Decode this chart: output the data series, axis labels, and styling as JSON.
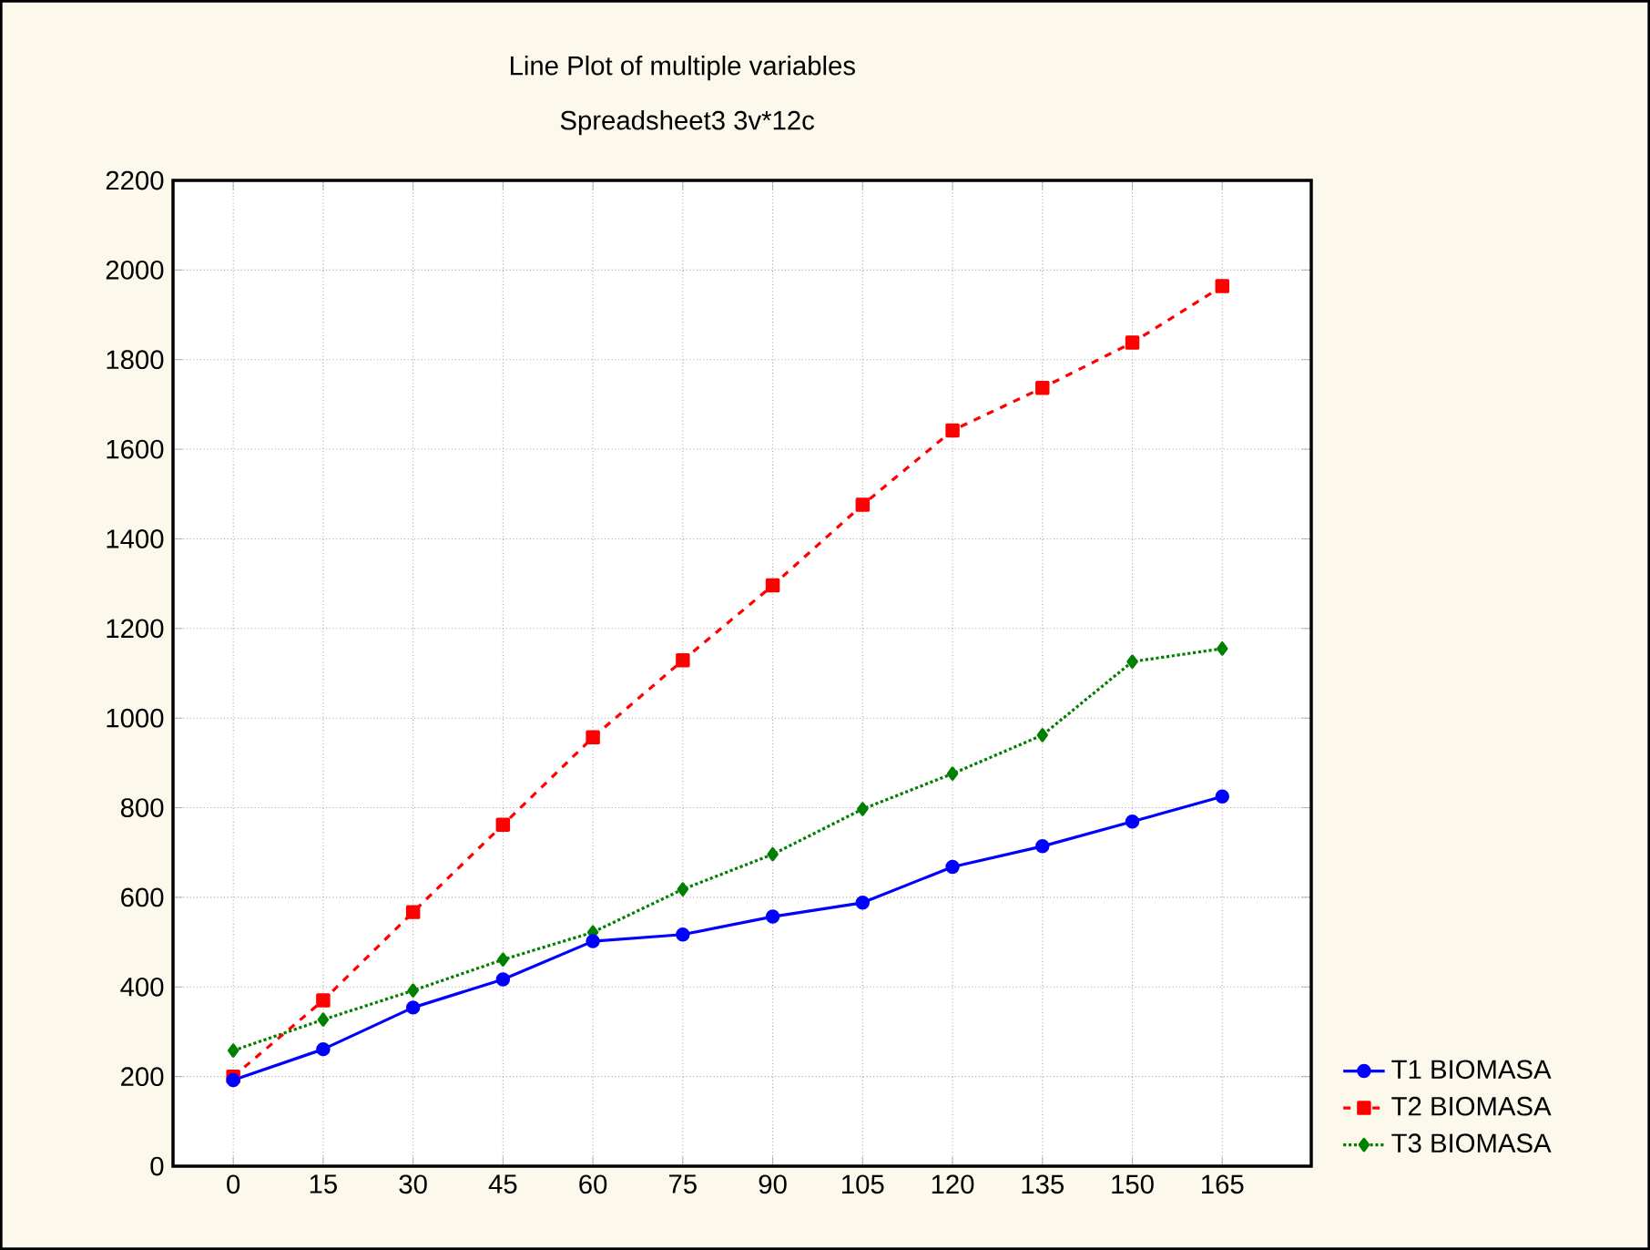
{
  "chart_data": {
    "type": "line",
    "title": "Line Plot of multiple variables",
    "subtitle": "Spreadsheet3 3v*12c",
    "categories": [
      "0",
      "15",
      "30",
      "45",
      "60",
      "75",
      "90",
      "105",
      "120",
      "135",
      "150",
      "165"
    ],
    "series": [
      {
        "name": "T1 BIOMASA",
        "color": "#0000ff",
        "marker": "circle",
        "line_style": "solid",
        "values": [
          192,
          261,
          354,
          417,
          502,
          517,
          557,
          588,
          668,
          714,
          769,
          825
        ]
      },
      {
        "name": "T2 BIOMASA",
        "color": "#ff0000",
        "marker": "square",
        "line_style": "dashed",
        "values": [
          200,
          370,
          567,
          762,
          957,
          1129,
          1296,
          1476,
          1642,
          1737,
          1838,
          1964
        ]
      },
      {
        "name": "T3 BIOMASA",
        "color": "#008000",
        "marker": "diamond",
        "line_style": "dotted",
        "values": [
          258,
          327,
          392,
          461,
          522,
          618,
          696,
          797,
          876,
          962,
          1126,
          1155
        ]
      }
    ],
    "ylim": [
      0,
      2200
    ],
    "yticks": [
      0,
      200,
      400,
      600,
      800,
      1000,
      1200,
      1400,
      1600,
      1800,
      2000,
      2200
    ],
    "grid": true,
    "legend": "bottom right"
  }
}
